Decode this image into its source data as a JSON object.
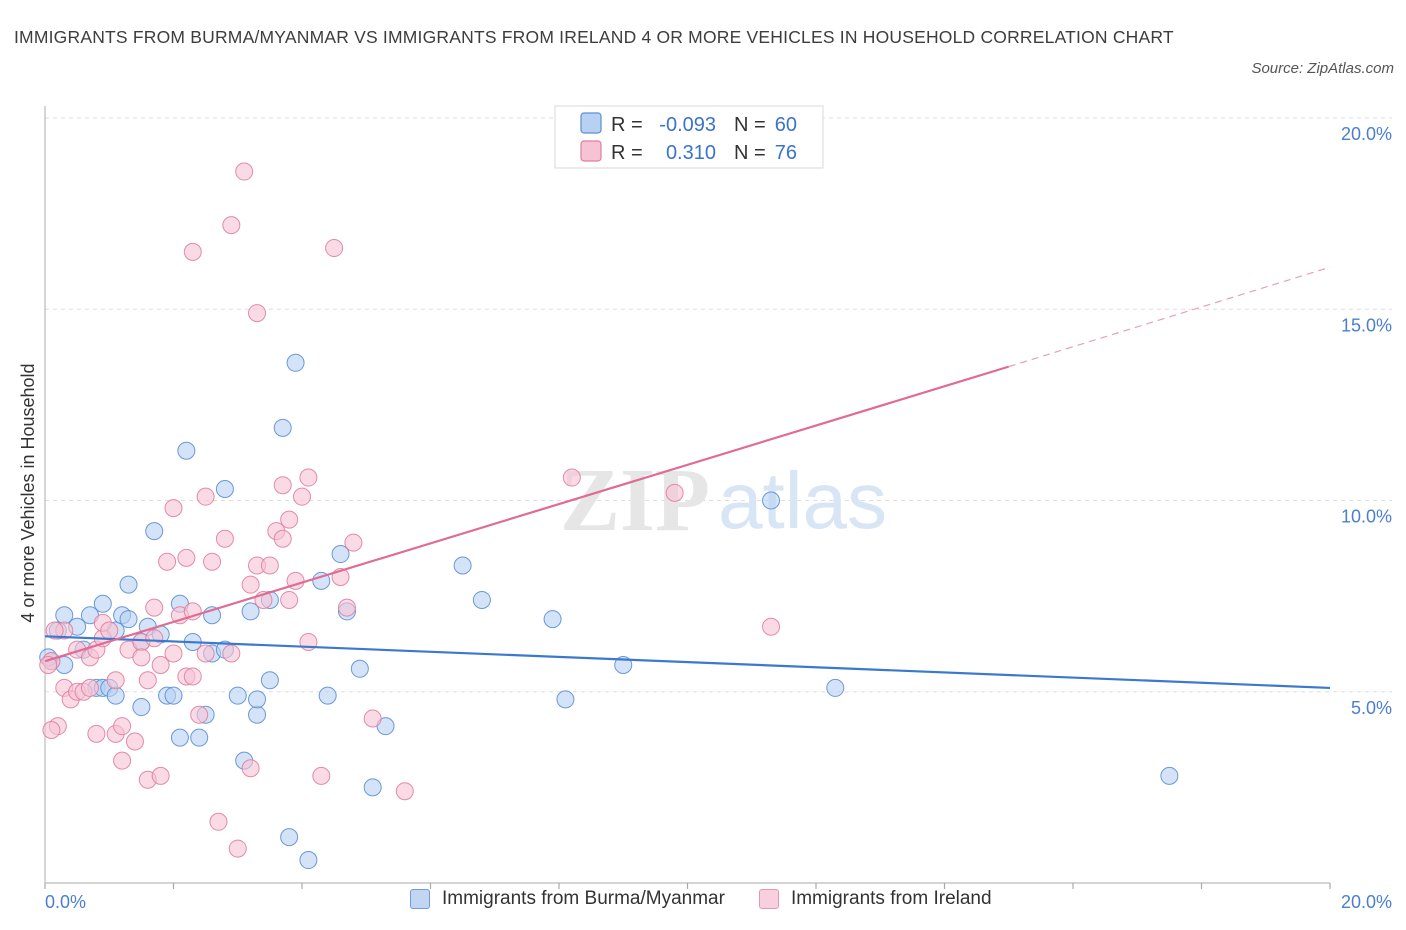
{
  "title": "IMMIGRANTS FROM BURMA/MYANMAR VS IMMIGRANTS FROM IRELAND 4 OR MORE VEHICLES IN HOUSEHOLD CORRELATION CHART",
  "source": "Source: ZipAtlas.com",
  "watermark": {
    "zip": "ZIP",
    "atlas": "atlas"
  },
  "legend_stats": [
    {
      "r_label": "R =",
      "r_value": "-0.093",
      "n_label": "N =",
      "n_value": "60",
      "color": "#5b8fd6",
      "fill": "#b8d0f2"
    },
    {
      "r_label": "R =",
      "r_value": "0.310",
      "n_label": "N =",
      "n_value": "76",
      "color": "#e07fa0",
      "fill": "#f7c3d4"
    }
  ],
  "bottom_legend": [
    {
      "label": "Immigrants from Burma/Myanmar",
      "fill": "#c2d6f4",
      "stroke": "#6f9be0"
    },
    {
      "label": "Immigrants from Ireland",
      "fill": "#f8cfdc",
      "stroke": "#e995b2"
    }
  ],
  "chart_data": {
    "type": "scatter",
    "title": "IMMIGRANTS FROM BURMA/MYANMAR VS IMMIGRANTS FROM IRELAND 4 OR MORE VEHICLES IN HOUSEHOLD CORRELATION CHART",
    "xlabel": "",
    "ylabel": "4 or more Vehicles in Household",
    "xlim": [
      0,
      20
    ],
    "ylim": [
      0,
      20
    ],
    "x_tick_labels": [
      "0.0%",
      "20.0%"
    ],
    "y_ticks": [
      5,
      10,
      15,
      20
    ],
    "y_tick_labels": [
      "5.0%",
      "10.0%",
      "15.0%",
      "20.0%"
    ],
    "grid": true,
    "series": [
      {
        "name": "Immigrants from Burma/Myanmar",
        "color": "#5b8fd6",
        "fill": "#b8d0f2",
        "trend": {
          "x": [
            0,
            20
          ],
          "y": [
            6.45,
            5.1
          ]
        },
        "points": [
          [
            0.1,
            5.8
          ],
          [
            0.2,
            6.6
          ],
          [
            0.3,
            5.7
          ],
          [
            0.3,
            7.0
          ],
          [
            0.5,
            6.7
          ],
          [
            0.6,
            6.1
          ],
          [
            0.7,
            7.0
          ],
          [
            0.8,
            5.1
          ],
          [
            0.9,
            5.1
          ],
          [
            0.9,
            7.3
          ],
          [
            1.0,
            5.1
          ],
          [
            1.1,
            6.6
          ],
          [
            1.1,
            4.9
          ],
          [
            1.2,
            7.0
          ],
          [
            1.3,
            7.8
          ],
          [
            1.3,
            6.9
          ],
          [
            1.5,
            6.3
          ],
          [
            1.5,
            4.6
          ],
          [
            1.6,
            6.7
          ],
          [
            1.7,
            9.2
          ],
          [
            1.8,
            6.5
          ],
          [
            1.9,
            4.9
          ],
          [
            2.0,
            4.9
          ],
          [
            2.1,
            7.3
          ],
          [
            2.1,
            3.8
          ],
          [
            2.2,
            11.3
          ],
          [
            2.3,
            6.3
          ],
          [
            2.4,
            3.8
          ],
          [
            2.5,
            4.4
          ],
          [
            2.6,
            7.0
          ],
          [
            2.6,
            6.0
          ],
          [
            2.8,
            6.1
          ],
          [
            2.8,
            10.3
          ],
          [
            3.0,
            4.9
          ],
          [
            3.1,
            3.2
          ],
          [
            3.2,
            7.1
          ],
          [
            3.3,
            4.4
          ],
          [
            3.3,
            4.8
          ],
          [
            3.5,
            5.3
          ],
          [
            3.5,
            7.4
          ],
          [
            3.7,
            11.9
          ],
          [
            3.8,
            1.2
          ],
          [
            3.9,
            13.6
          ],
          [
            4.1,
            0.6
          ],
          [
            4.3,
            7.9
          ],
          [
            4.4,
            4.9
          ],
          [
            4.6,
            8.6
          ],
          [
            4.7,
            7.1
          ],
          [
            4.9,
            5.6
          ],
          [
            5.1,
            2.5
          ],
          [
            5.3,
            4.1
          ],
          [
            6.5,
            8.3
          ],
          [
            6.8,
            7.4
          ],
          [
            7.9,
            6.9
          ],
          [
            8.1,
            4.8
          ],
          [
            9.0,
            5.7
          ],
          [
            11.3,
            10.0
          ],
          [
            12.3,
            5.1
          ],
          [
            17.5,
            2.8
          ],
          [
            0.05,
            5.9
          ]
        ]
      },
      {
        "name": "Immigrants from Ireland",
        "color": "#e07fa0",
        "fill": "#f7c3d4",
        "trend": {
          "x": [
            0,
            15
          ],
          "y": [
            5.8,
            13.5
          ]
        },
        "trend_dashed": {
          "x": [
            15,
            20
          ],
          "y": [
            13.5,
            16.1
          ]
        },
        "points": [
          [
            0.1,
            5.8
          ],
          [
            0.2,
            4.1
          ],
          [
            0.3,
            5.1
          ],
          [
            0.3,
            6.6
          ],
          [
            0.4,
            4.8
          ],
          [
            0.5,
            5.0
          ],
          [
            0.5,
            6.1
          ],
          [
            0.6,
            5.0
          ],
          [
            0.7,
            5.1
          ],
          [
            0.7,
            5.9
          ],
          [
            0.8,
            3.9
          ],
          [
            0.8,
            6.1
          ],
          [
            0.9,
            6.4
          ],
          [
            0.9,
            6.8
          ],
          [
            1.0,
            6.6
          ],
          [
            1.1,
            5.3
          ],
          [
            1.1,
            3.9
          ],
          [
            1.2,
            4.1
          ],
          [
            1.2,
            3.2
          ],
          [
            1.3,
            6.1
          ],
          [
            1.4,
            3.7
          ],
          [
            1.5,
            6.3
          ],
          [
            1.5,
            5.9
          ],
          [
            1.6,
            5.3
          ],
          [
            1.6,
            2.7
          ],
          [
            1.7,
            6.4
          ],
          [
            1.7,
            7.2
          ],
          [
            1.8,
            5.7
          ],
          [
            1.8,
            2.8
          ],
          [
            1.9,
            8.4
          ],
          [
            2.0,
            9.8
          ],
          [
            2.0,
            6.0
          ],
          [
            2.1,
            7.0
          ],
          [
            2.2,
            5.4
          ],
          [
            2.2,
            8.5
          ],
          [
            2.3,
            5.4
          ],
          [
            2.3,
            7.1
          ],
          [
            2.3,
            16.5
          ],
          [
            2.4,
            4.4
          ],
          [
            2.5,
            6.0
          ],
          [
            2.5,
            10.1
          ],
          [
            2.6,
            8.4
          ],
          [
            2.7,
            1.6
          ],
          [
            2.8,
            9.0
          ],
          [
            2.9,
            6.0
          ],
          [
            2.9,
            17.2
          ],
          [
            3.0,
            0.9
          ],
          [
            3.1,
            18.6
          ],
          [
            3.2,
            7.8
          ],
          [
            3.2,
            3.0
          ],
          [
            3.3,
            8.3
          ],
          [
            3.3,
            14.9
          ],
          [
            3.4,
            7.4
          ],
          [
            3.5,
            8.3
          ],
          [
            3.6,
            9.2
          ],
          [
            3.7,
            10.4
          ],
          [
            3.7,
            9.0
          ],
          [
            3.8,
            9.5
          ],
          [
            3.8,
            7.4
          ],
          [
            3.9,
            7.9
          ],
          [
            4.0,
            10.1
          ],
          [
            4.1,
            10.6
          ],
          [
            4.1,
            6.3
          ],
          [
            4.3,
            2.8
          ],
          [
            4.5,
            16.6
          ],
          [
            4.6,
            8.0
          ],
          [
            4.7,
            7.2
          ],
          [
            4.8,
            8.9
          ],
          [
            5.1,
            4.3
          ],
          [
            5.6,
            2.4
          ],
          [
            8.2,
            10.6
          ],
          [
            9.8,
            10.2
          ],
          [
            11.3,
            6.7
          ],
          [
            0.05,
            5.7
          ],
          [
            0.1,
            4.0
          ],
          [
            0.15,
            6.6
          ]
        ]
      }
    ]
  }
}
